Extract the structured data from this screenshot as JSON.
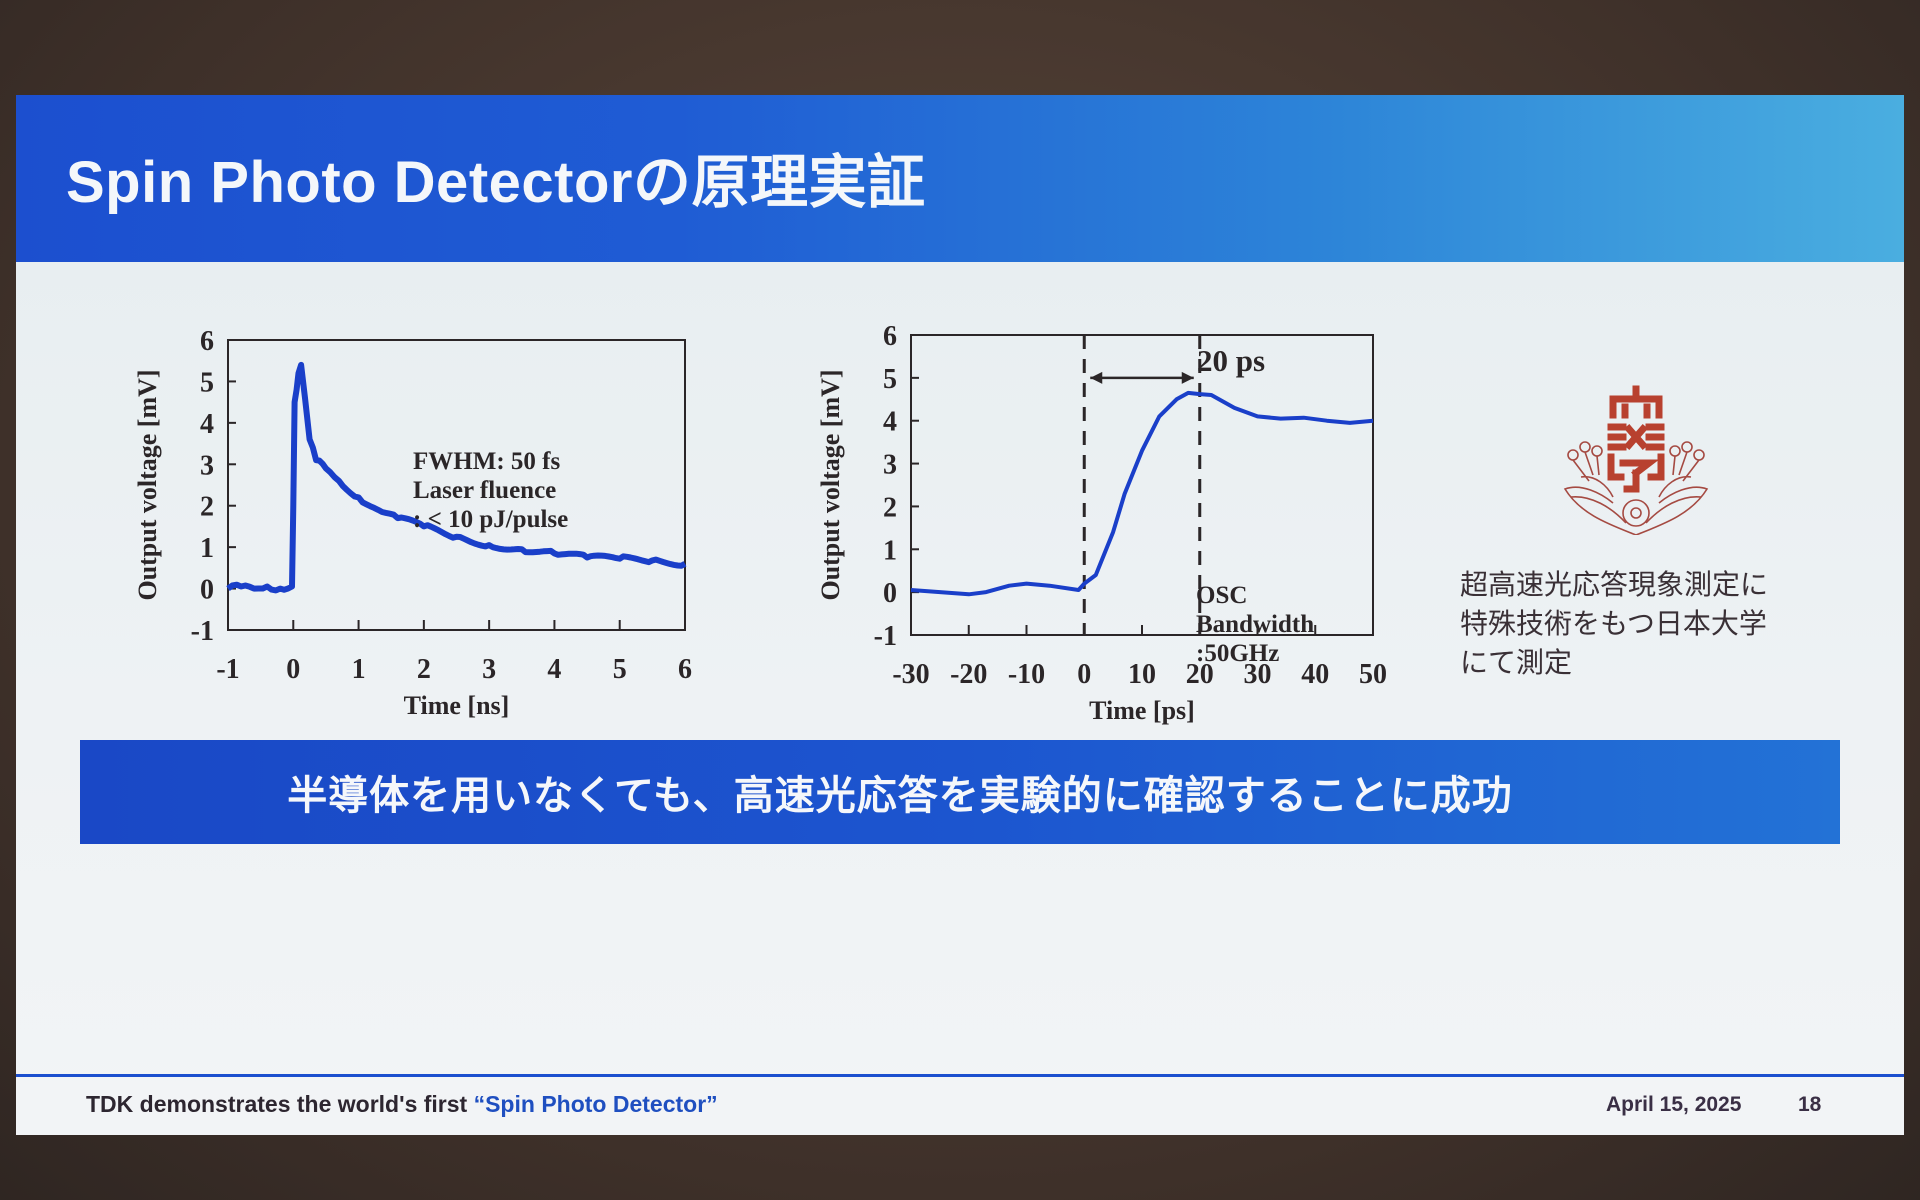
{
  "slide": {
    "title": "Spin Photo Detectorの原理実証",
    "conclusion_banner": "半導体を用いなくても、高速光応答を実験的に確認することに成功",
    "university_note": {
      "lines": [
        "超高速光応答現象測定に",
        "特殊技術をもつ日本大学",
        "にて測定"
      ]
    },
    "footer": {
      "left_prefix": "TDK demonstrates the world's first ",
      "left_highlight": "“Spin Photo Detector”",
      "date": "April 15, 2025",
      "page": "18"
    },
    "colors": {
      "title_band_start": "#1c4fcf",
      "title_band_end": "#4aaee0",
      "trace": "#1a3fc9",
      "logo": "#b8412f",
      "footer_accent": "#1f4fc0"
    }
  },
  "chart_data": [
    {
      "type": "line",
      "title": "",
      "xlabel": "Time [ns]",
      "ylabel": "Output voltage [mV]",
      "xlim": [
        -1,
        6
      ],
      "ylim": [
        -1,
        6
      ],
      "xticks": [
        "-1",
        "0",
        "1",
        "2",
        "3",
        "4",
        "5",
        "6"
      ],
      "yticks": [
        "6",
        "5",
        "4",
        "3",
        "2",
        "1",
        "0",
        "-1"
      ],
      "grid": false,
      "annotations": [
        "FWHM: 50 fs",
        "Laser fluence",
        ": < 10 pJ/pulse"
      ],
      "series": [
        {
          "name": "Output voltage",
          "x": [
            -1.0,
            -0.8,
            -0.6,
            -0.4,
            -0.2,
            -0.02,
            0.0,
            0.02,
            0.05,
            0.08,
            0.12,
            0.18,
            0.25,
            0.35,
            0.5,
            0.7,
            1.0,
            1.3,
            1.6,
            2.0,
            2.5,
            3.0,
            3.5,
            4.0,
            4.5,
            5.0,
            5.5,
            6.0
          ],
          "y": [
            0.0,
            0.05,
            0.0,
            0.05,
            0.0,
            0.05,
            2.0,
            4.5,
            4.8,
            5.2,
            5.4,
            4.6,
            3.6,
            3.1,
            2.9,
            2.6,
            2.2,
            1.9,
            1.7,
            1.5,
            1.25,
            1.05,
            0.95,
            0.85,
            0.75,
            0.72,
            0.68,
            0.6
          ]
        }
      ]
    },
    {
      "type": "line",
      "title": "",
      "xlabel": "Time [ps]",
      "ylabel": "Output voltage [mV]",
      "xlim": [
        -30,
        50
      ],
      "ylim": [
        -1,
        6
      ],
      "xticks": [
        "-30",
        "-20",
        "-10",
        "0",
        "10",
        "20",
        "30",
        "40",
        "50"
      ],
      "yticks": [
        "6",
        "5",
        "4",
        "3",
        "2",
        "1",
        "0",
        "-1"
      ],
      "grid": false,
      "annotations": [
        "20 ps",
        "OSC",
        "Bandwidth",
        ":50GHz"
      ],
      "vlines": [
        0,
        20
      ],
      "arrow": {
        "from": 0,
        "to": 20,
        "label": "20 ps"
      },
      "series": [
        {
          "name": "Output voltage",
          "x": [
            -30,
            -25,
            -20,
            -17,
            -13,
            -10,
            -6,
            -1,
            0,
            2,
            5,
            7,
            10,
            13,
            16,
            18,
            20,
            22,
            26,
            30,
            34,
            38,
            42,
            46,
            50
          ],
          "y": [
            0.05,
            0.0,
            -0.05,
            0.0,
            0.15,
            0.2,
            0.15,
            0.05,
            0.2,
            0.4,
            1.4,
            2.3,
            3.3,
            4.1,
            4.5,
            4.65,
            4.62,
            4.6,
            4.3,
            4.1,
            4.05,
            4.07,
            4.0,
            3.95,
            4.0
          ]
        }
      ]
    }
  ]
}
